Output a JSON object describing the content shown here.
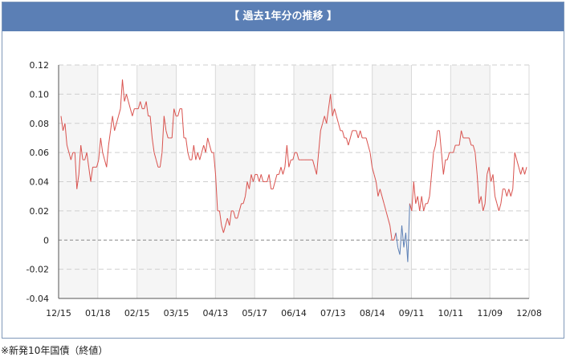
{
  "header": {
    "title": "【 過去1年分の推移 】"
  },
  "footnote": "※新発10年国債（終値）",
  "colors": {
    "header_bg": "#5b7fb5",
    "line_positive": "#d9534f",
    "line_negative": "#5b7fb5",
    "zero_line": "#888888",
    "band": "#f5f5f5"
  },
  "chart_data": {
    "type": "line",
    "title": "【 過去1年分の推移 】",
    "xlabel": "",
    "ylabel": "",
    "categories": [
      "12/15",
      "01/18",
      "02/15",
      "03/15",
      "04/13",
      "05/17",
      "06/14",
      "07/13",
      "08/14",
      "09/11",
      "10/11",
      "11/09",
      "12/08"
    ],
    "yticks": [
      "0.12",
      "0.10",
      "0.08",
      "0.06",
      "0.04",
      "0.02",
      "0",
      "-0.02",
      "-0.04"
    ],
    "ylim": [
      -0.04,
      0.12
    ],
    "grid": true,
    "y": [
      0.085,
      0.075,
      0.08,
      0.065,
      0.06,
      0.055,
      0.06,
      0.06,
      0.035,
      0.045,
      0.065,
      0.055,
      0.055,
      0.06,
      0.05,
      0.04,
      0.05,
      0.05,
      0.05,
      0.055,
      0.07,
      0.06,
      0.055,
      0.05,
      0.065,
      0.075,
      0.085,
      0.075,
      0.08,
      0.085,
      0.09,
      0.11,
      0.095,
      0.1,
      0.095,
      0.09,
      0.085,
      0.09,
      0.09,
      0.09,
      0.095,
      0.09,
      0.09,
      0.095,
      0.085,
      0.085,
      0.07,
      0.06,
      0.055,
      0.05,
      0.05,
      0.06,
      0.085,
      0.075,
      0.07,
      0.07,
      0.07,
      0.09,
      0.085,
      0.085,
      0.09,
      0.09,
      0.07,
      0.07,
      0.06,
      0.055,
      0.055,
      0.065,
      0.055,
      0.06,
      0.055,
      0.06,
      0.065,
      0.06,
      0.07,
      0.065,
      0.06,
      0.06,
      0.045,
      0.02,
      0.02,
      0.01,
      0.005,
      0.01,
      0.015,
      0.01,
      0.02,
      0.02,
      0.015,
      0.015,
      0.02,
      0.025,
      0.025,
      0.03,
      0.04,
      0.035,
      0.045,
      0.04,
      0.045,
      0.045,
      0.04,
      0.045,
      0.04,
      0.04,
      0.04,
      0.045,
      0.035,
      0.035,
      0.04,
      0.045,
      0.045,
      0.05,
      0.045,
      0.05,
      0.065,
      0.05,
      0.055,
      0.055,
      0.06,
      0.06,
      0.055,
      0.055,
      0.055,
      0.055,
      0.055,
      0.055,
      0.055,
      0.055,
      0.05,
      0.045,
      0.06,
      0.075,
      0.08,
      0.085,
      0.08,
      0.09,
      0.1,
      0.085,
      0.09,
      0.085,
      0.08,
      0.075,
      0.075,
      0.07,
      0.07,
      0.065,
      0.07,
      0.075,
      0.075,
      0.075,
      0.07,
      0.075,
      0.07,
      0.07,
      0.07,
      0.065,
      0.06,
      0.05,
      0.045,
      0.04,
      0.03,
      0.035,
      0.03,
      0.025,
      0.02,
      0.015,
      0.01,
      0.0,
      0.0,
      0.005,
      -0.005,
      -0.01,
      0.01,
      -0.005,
      0.005,
      -0.015,
      0.025,
      0.02,
      0.04,
      0.025,
      0.03,
      0.02,
      0.03,
      0.02,
      0.025,
      0.025,
      0.03,
      0.045,
      0.06,
      0.065,
      0.075,
      0.075,
      0.06,
      0.045,
      0.055,
      0.055,
      0.06,
      0.06,
      0.06,
      0.065,
      0.065,
      0.065,
      0.075,
      0.07,
      0.07,
      0.07,
      0.07,
      0.065,
      0.065,
      0.06,
      0.045,
      0.025,
      0.03,
      0.02,
      0.025,
      0.045,
      0.05,
      0.04,
      0.045,
      0.03,
      0.025,
      0.02,
      0.025,
      0.035,
      0.035,
      0.03,
      0.035,
      0.03,
      0.035,
      0.06,
      0.055,
      0.05,
      0.045,
      0.05,
      0.045,
      0.05
    ]
  }
}
